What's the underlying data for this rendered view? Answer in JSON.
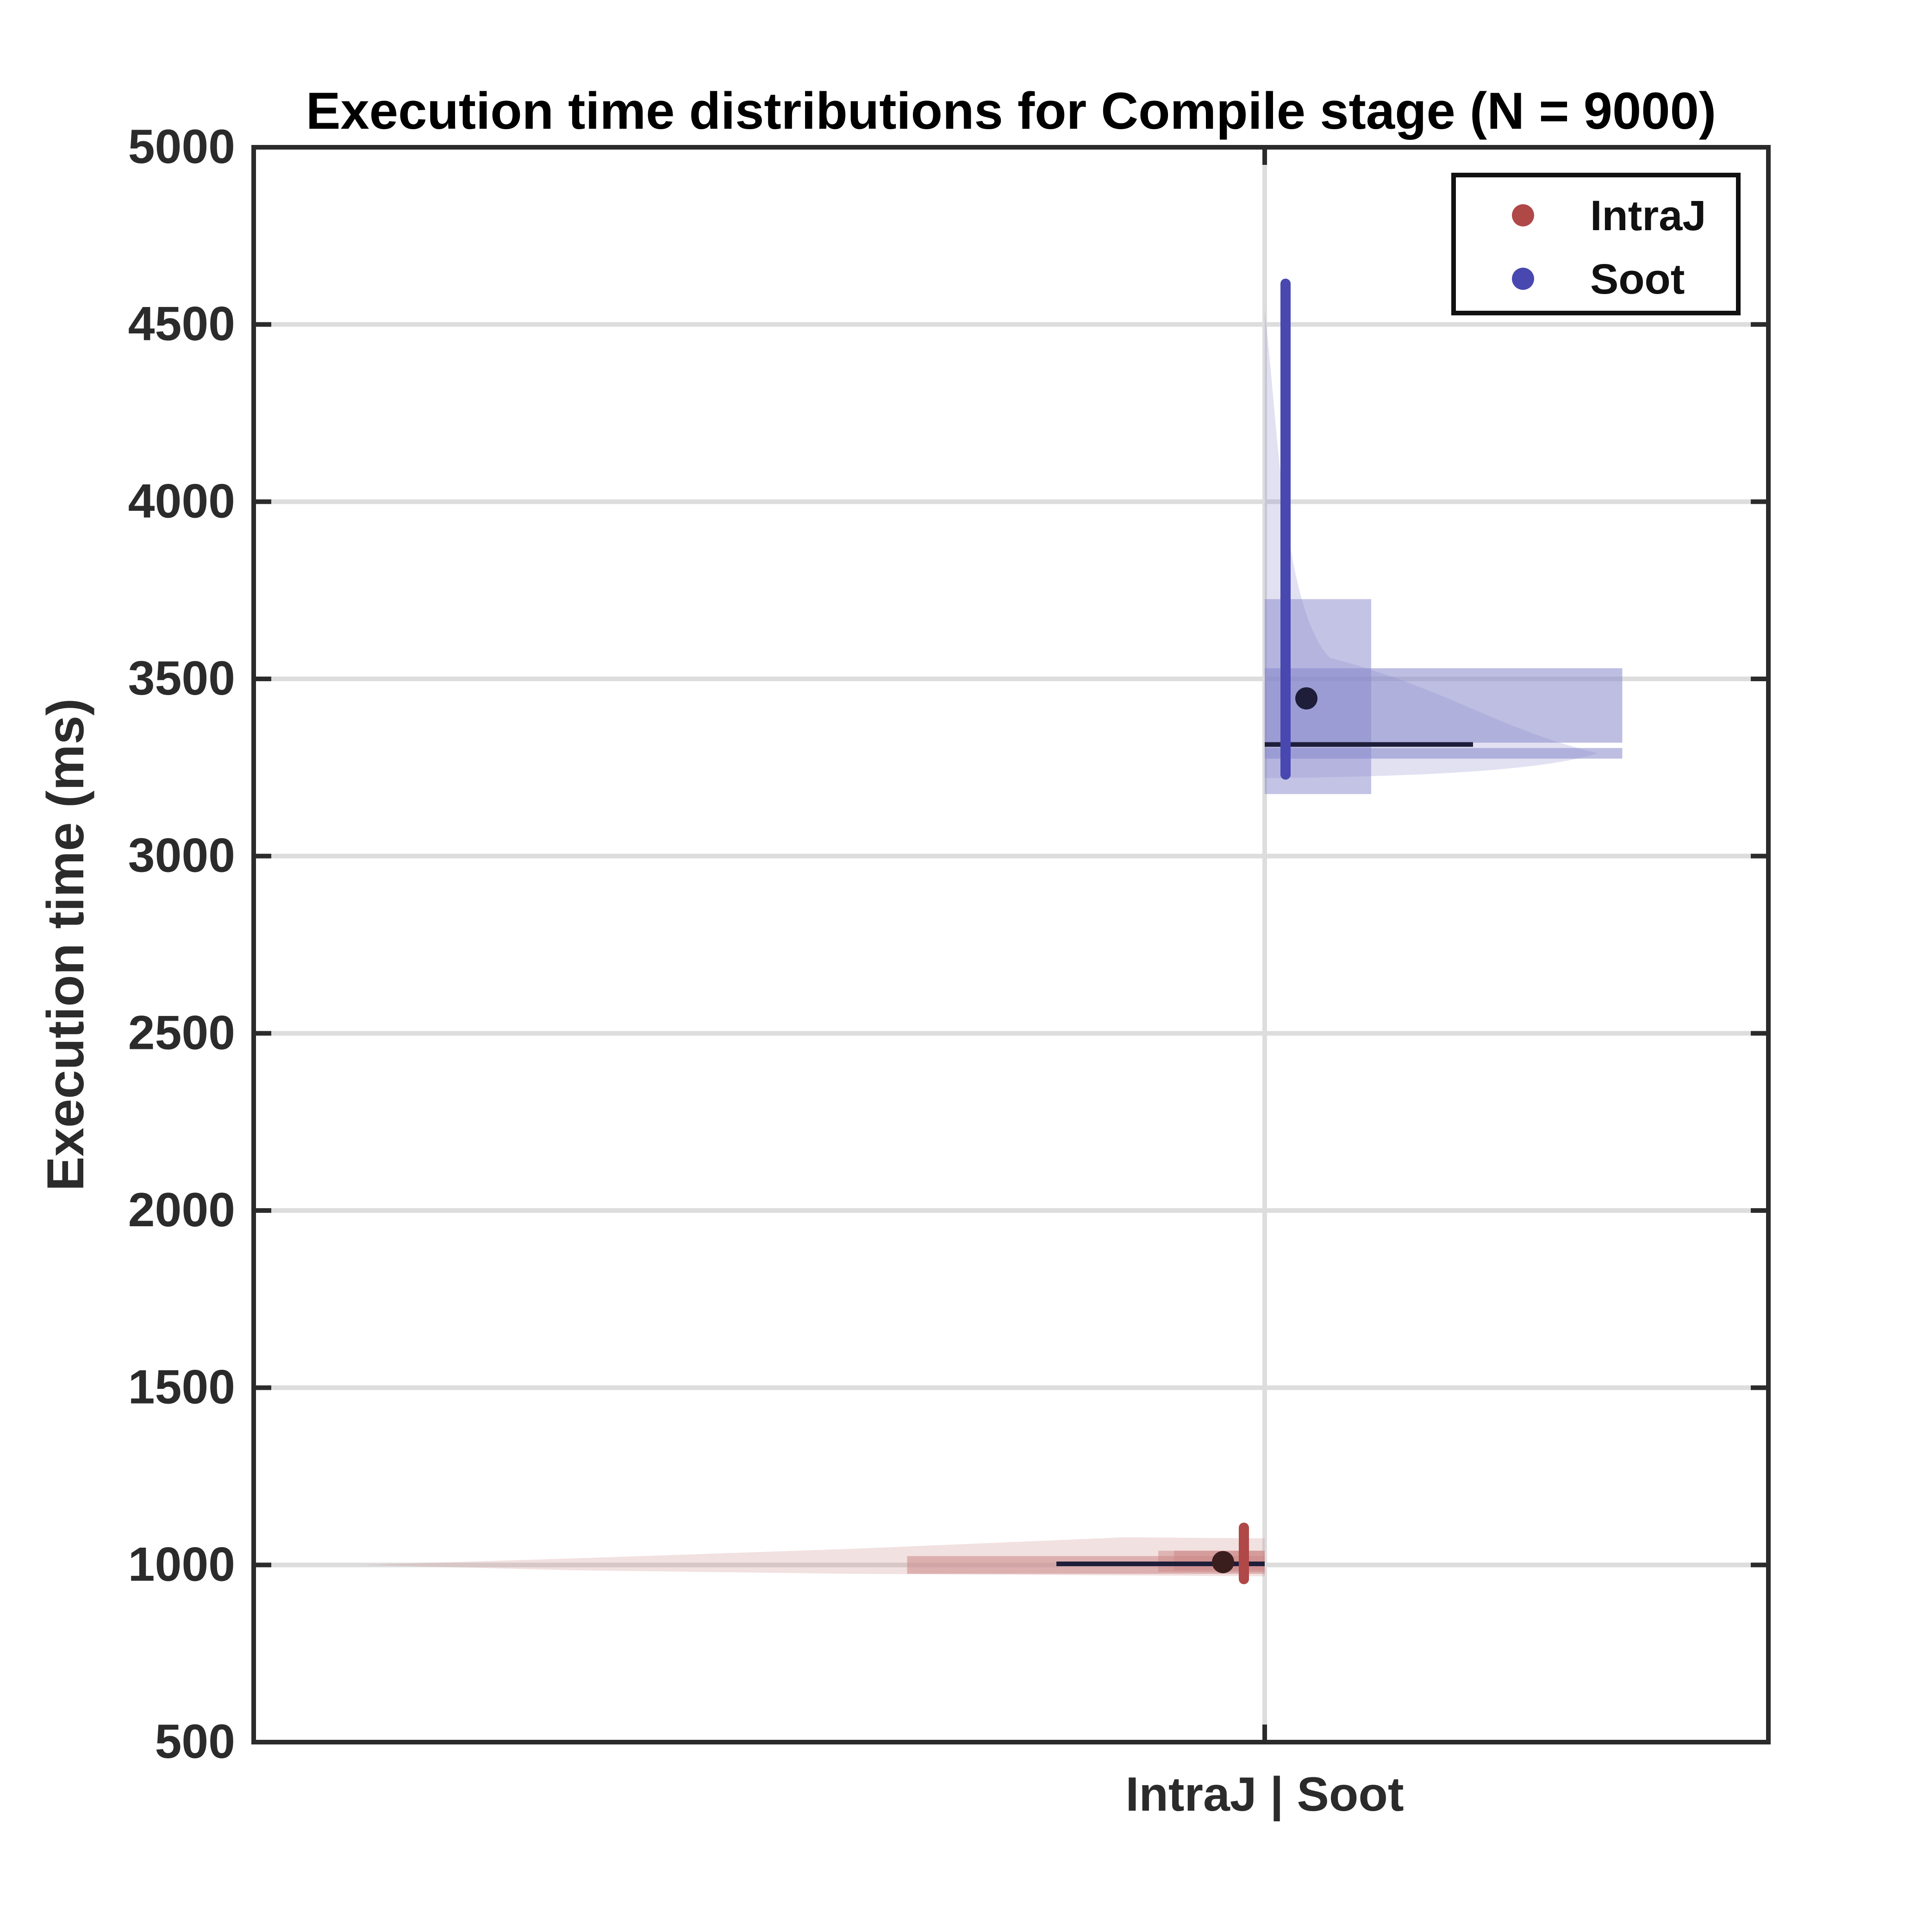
{
  "chart_data": {
    "type": "violin",
    "title": "Execution time distributions for Compile stage (N = 9000)",
    "ylabel": "Execution time (ms)",
    "xlabel": "",
    "xticklabel": "IntraJ | Soot",
    "ylim": [
      500,
      5000
    ],
    "yticks": [
      500,
      1000,
      1500,
      2000,
      2500,
      3000,
      3500,
      4000,
      4500,
      5000
    ],
    "grid": true,
    "legend_position": "top-right",
    "series": [
      {
        "name": "IntraJ",
        "side": "left",
        "color": "#b04848",
        "fill": "#cc8888",
        "mean": 1008,
        "median": 1003,
        "whisker": [
          960,
          1105
        ],
        "range": [
          990,
          1070
        ],
        "box": [
          980,
          1040
        ],
        "hist": [
          {
            "lo": 975,
            "hi": 1025,
            "width": 0.71
          },
          {
            "lo": 985,
            "hi": 1040,
            "width": 0.18
          }
        ]
      },
      {
        "name": "Soot",
        "side": "right",
        "color": "#4848b0",
        "fill": "#8888cc",
        "mean": 3445,
        "median": 3315,
        "whisker": [
          3230,
          4615
        ],
        "range": [
          3200,
          4540
        ],
        "box": [
          3175,
          3725
        ],
        "hist": [
          {
            "lo": 3275,
            "hi": 3305,
            "width": 0.71
          },
          {
            "lo": 3320,
            "hi": 3530,
            "width": 0.71
          }
        ]
      }
    ]
  }
}
